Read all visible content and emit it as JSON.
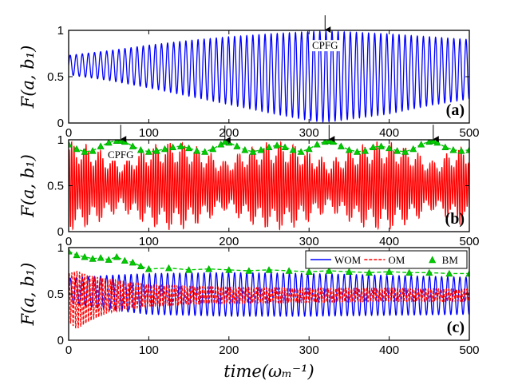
{
  "chart_data": [
    {
      "type": "line",
      "panel_label": "(a)",
      "ylabel": "F(a, b₁)",
      "xlim": [
        0,
        500
      ],
      "ylim": [
        0,
        1
      ],
      "x_ticks": [
        "0",
        "100",
        "200",
        "300",
        "400",
        "500"
      ],
      "y_ticks": [
        "0",
        "0.5",
        "1"
      ],
      "series": [
        {
          "key": "wom",
          "color": "#0000ff",
          "style": "solid",
          "oscillation": {
            "period": 7.6,
            "envelope_x": [
              0,
              50,
              100,
              150,
              200,
              250,
              300,
              320,
              340,
              400,
              450,
              500
            ],
            "envelope_upper": [
              0.73,
              0.78,
              0.84,
              0.89,
              0.93,
              0.96,
              0.985,
              0.99,
              0.985,
              0.96,
              0.93,
              0.9
            ],
            "envelope_lower": [
              0.52,
              0.46,
              0.38,
              0.29,
              0.2,
              0.11,
              0.03,
              0.01,
              0.03,
              0.1,
              0.19,
              0.26
            ]
          }
        }
      ],
      "annotations": [
        {
          "text": "CPFG",
          "x": 320,
          "y": 0.99
        }
      ]
    },
    {
      "type": "line",
      "panel_label": "(b)",
      "ylabel": "F(a, b₁)",
      "xlim": [
        0,
        500
      ],
      "ylim": [
        0,
        1
      ],
      "x_ticks": [
        "0",
        "100",
        "200",
        "300",
        "400",
        "500"
      ],
      "y_ticks": [
        "0",
        "0.5",
        "1"
      ],
      "series": [
        {
          "key": "om",
          "color": "#ff0000",
          "style": "solid",
          "oscillation": {
            "period": 3.0,
            "beat_period": 130,
            "envelope_x": [
              0,
              500
            ],
            "envelope_upper": [
              0.98,
              0.98
            ],
            "envelope_lower": [
              0.02,
              0.02
            ]
          }
        },
        {
          "key": "bm",
          "color": "#00cc00",
          "style": "dashed-triangle",
          "x": [
            0,
            10,
            20,
            30,
            40,
            50,
            60,
            65,
            70,
            80,
            90,
            100,
            110,
            120,
            130,
            140,
            150,
            160,
            170,
            180,
            190,
            195,
            200,
            210,
            220,
            230,
            240,
            250,
            260,
            270,
            280,
            290,
            300,
            310,
            320,
            325,
            330,
            340,
            350,
            360,
            370,
            380,
            390,
            400,
            410,
            420,
            430,
            440,
            450,
            455,
            460,
            470,
            480,
            490,
            500
          ],
          "y": [
            0.95,
            0.9,
            0.87,
            0.88,
            0.93,
            0.97,
            0.99,
            0.99,
            0.98,
            0.93,
            0.89,
            0.87,
            0.88,
            0.9,
            0.92,
            0.93,
            0.91,
            0.88,
            0.87,
            0.9,
            0.95,
            0.98,
            0.97,
            0.93,
            0.89,
            0.87,
            0.89,
            0.92,
            0.94,
            0.92,
            0.89,
            0.87,
            0.9,
            0.95,
            0.98,
            0.99,
            0.98,
            0.93,
            0.89,
            0.87,
            0.88,
            0.92,
            0.93,
            0.91,
            0.88,
            0.87,
            0.9,
            0.95,
            0.98,
            0.99,
            0.97,
            0.92,
            0.89,
            0.88,
            0.89
          ]
        }
      ],
      "annotations": [
        {
          "text": "CPFG",
          "x": 65,
          "y": 0.99
        },
        {
          "text": "",
          "x": 195,
          "y": 0.98
        },
        {
          "text": "",
          "x": 325,
          "y": 0.99
        },
        {
          "text": "",
          "x": 455,
          "y": 0.99
        }
      ]
    },
    {
      "type": "line",
      "panel_label": "(c)",
      "ylabel": "F(a, b₁)",
      "xlabel": "time(ωₘ⁻¹)",
      "xlim": [
        0,
        500
      ],
      "ylim": [
        0,
        1
      ],
      "x_ticks": [
        "0",
        "100",
        "200",
        "300",
        "400",
        "500"
      ],
      "y_ticks": [
        "0",
        "0.5",
        "1"
      ],
      "legend": {
        "placement": "top-right",
        "entries": [
          "WOM",
          "OM",
          "BM"
        ]
      },
      "series": [
        {
          "key": "wom",
          "name": "WOM",
          "color": "#0000ff",
          "style": "solid",
          "oscillation": {
            "period": 7.6,
            "envelope_x": [
              0,
              50,
              100,
              200,
              300,
              400,
              500
            ],
            "envelope_upper": [
              0.67,
              0.7,
              0.72,
              0.73,
              0.72,
              0.7,
              0.68
            ],
            "envelope_lower": [
              0.4,
              0.33,
              0.28,
              0.26,
              0.26,
              0.27,
              0.28
            ]
          }
        },
        {
          "key": "om",
          "name": "OM",
          "color": "#ff0000",
          "style": "dashed",
          "oscillation": {
            "period": 3.2,
            "envelope_x": [
              0,
              10,
              25,
              50,
              75,
              100,
              150,
              200,
              300,
              400,
              500
            ],
            "envelope_upper": [
              0.72,
              0.75,
              0.7,
              0.66,
              0.62,
              0.6,
              0.58,
              0.57,
              0.56,
              0.56,
              0.55
            ],
            "envelope_lower": [
              0.2,
              0.12,
              0.2,
              0.3,
              0.34,
              0.37,
              0.39,
              0.4,
              0.41,
              0.42,
              0.42
            ]
          }
        },
        {
          "key": "bm",
          "name": "BM",
          "color": "#00cc00",
          "style": "dashed-triangle",
          "x": [
            0,
            10,
            20,
            30,
            40,
            50,
            60,
            70,
            80,
            90,
            100,
            125,
            150,
            175,
            200,
            225,
            250,
            275,
            300,
            325,
            350,
            375,
            400,
            425,
            450,
            475,
            500
          ],
          "y": [
            0.96,
            0.92,
            0.9,
            0.88,
            0.89,
            0.87,
            0.9,
            0.86,
            0.84,
            0.8,
            0.77,
            0.78,
            0.76,
            0.77,
            0.76,
            0.75,
            0.76,
            0.75,
            0.74,
            0.75,
            0.74,
            0.73,
            0.74,
            0.73,
            0.73,
            0.72,
            0.72
          ]
        }
      ]
    }
  ]
}
